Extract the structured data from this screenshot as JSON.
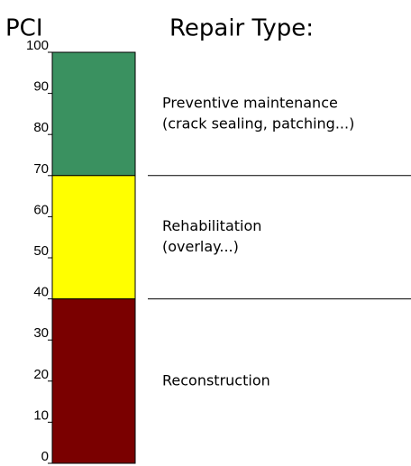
{
  "chart_data": {
    "type": "band",
    "axis_title": "PCI",
    "header": "Repair Type:",
    "ylim": [
      0,
      100
    ],
    "yticks": [
      0,
      10,
      20,
      30,
      40,
      50,
      60,
      70,
      80,
      90,
      100
    ],
    "bands": [
      {
        "range": [
          70,
          100
        ],
        "color": "#3a9160",
        "lines": [
          "Preventive maintenance",
          "(crack sealing, patching...)"
        ]
      },
      {
        "range": [
          40,
          70
        ],
        "color": "#ffff00",
        "lines": [
          "Rehabilitation",
          "(overlay...)"
        ]
      },
      {
        "range": [
          0,
          40
        ],
        "color": "#7a0000",
        "lines": [
          "Reconstruction"
        ]
      }
    ]
  }
}
